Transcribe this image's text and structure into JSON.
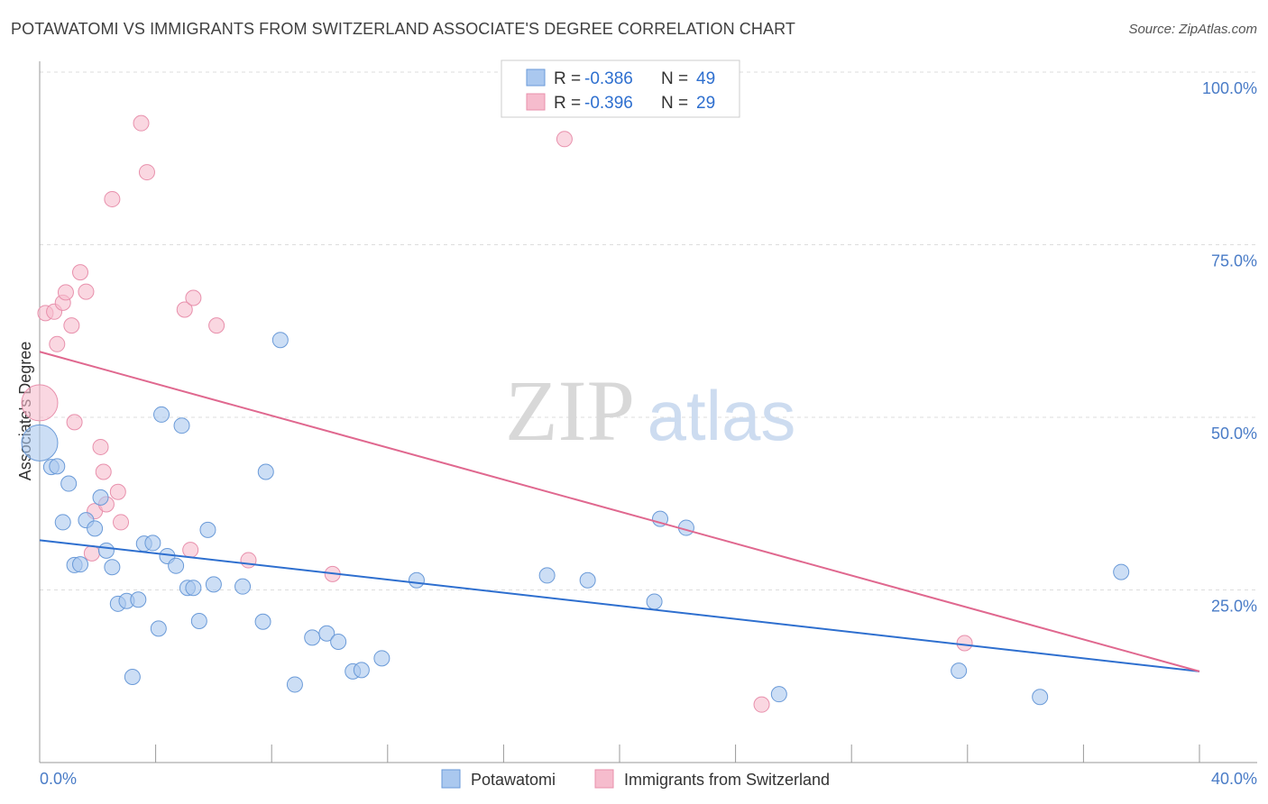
{
  "title": "POTAWATOMI VS IMMIGRANTS FROM SWITZERLAND ASSOCIATE'S DEGREE CORRELATION CHART",
  "source": "Source: ZipAtlas.com",
  "watermark": {
    "zip": "ZIP",
    "atlas": "atlas"
  },
  "colors": {
    "blue_fill": "#aac8ef",
    "blue_stroke": "#6a9ad8",
    "blue_line": "#2e6fcf",
    "pink_fill": "#f6bccd",
    "pink_stroke": "#e890ac",
    "pink_line": "#e0688f",
    "tick_text": "#4a7cc7",
    "grid": "#dddddd"
  },
  "legend": {
    "entries": [
      {
        "r_label": "R = ",
        "r_value": "-0.386",
        "n_label": "N = ",
        "n_value": "49",
        "series": "blue"
      },
      {
        "r_label": "R = ",
        "r_value": "-0.396",
        "n_label": "N = ",
        "n_value": "29",
        "series": "pink"
      }
    ]
  },
  "chart_data": {
    "type": "scatter",
    "title": "POTAWATOMI VS IMMIGRANTS FROM SWITZERLAND ASSOCIATE'S DEGREE CORRELATION CHART",
    "xlabel": "",
    "ylabel": "Associate's Degree",
    "xlim": [
      0,
      40
    ],
    "ylim": [
      0,
      100
    ],
    "x_tick_labels": [
      {
        "value": 0,
        "label": "0.0%"
      },
      {
        "value": 40,
        "label": "40.0%"
      }
    ],
    "y_tick_labels": [
      {
        "value": 25,
        "label": "25.0%"
      },
      {
        "value": 50,
        "label": "50.0%"
      },
      {
        "value": 75,
        "label": "75.0%"
      },
      {
        "value": 100,
        "label": "100.0%"
      }
    ],
    "x_minor_ticks": [
      4,
      8,
      12,
      16,
      20,
      24,
      28,
      32,
      36,
      40
    ],
    "grid": true,
    "legend_position": "top-center",
    "series": [
      {
        "name": "Potawatomi",
        "color": "blue",
        "R": -0.386,
        "N": 49,
        "trend": {
          "x0": 0,
          "y0": 32.2,
          "x1": 40,
          "y1": 13.2
        },
        "points": [
          {
            "x": 0.0,
            "y": 46.3,
            "size": "large"
          },
          {
            "x": 0.4,
            "y": 42.8
          },
          {
            "x": 0.6,
            "y": 42.9
          },
          {
            "x": 0.8,
            "y": 34.8
          },
          {
            "x": 1.0,
            "y": 40.4
          },
          {
            "x": 1.2,
            "y": 28.6
          },
          {
            "x": 1.4,
            "y": 28.7
          },
          {
            "x": 1.6,
            "y": 35.1
          },
          {
            "x": 1.9,
            "y": 33.9
          },
          {
            "x": 2.1,
            "y": 38.4
          },
          {
            "x": 2.3,
            "y": 30.7
          },
          {
            "x": 2.5,
            "y": 28.3
          },
          {
            "x": 2.7,
            "y": 23.0
          },
          {
            "x": 3.0,
            "y": 23.4
          },
          {
            "x": 3.2,
            "y": 12.4
          },
          {
            "x": 3.4,
            "y": 23.6
          },
          {
            "x": 3.6,
            "y": 31.7
          },
          {
            "x": 3.9,
            "y": 31.8
          },
          {
            "x": 4.1,
            "y": 19.4
          },
          {
            "x": 4.2,
            "y": 50.4
          },
          {
            "x": 4.4,
            "y": 29.9
          },
          {
            "x": 4.7,
            "y": 28.5
          },
          {
            "x": 4.9,
            "y": 48.8
          },
          {
            "x": 5.1,
            "y": 25.3
          },
          {
            "x": 5.3,
            "y": 25.3
          },
          {
            "x": 5.5,
            "y": 20.5
          },
          {
            "x": 5.8,
            "y": 33.7
          },
          {
            "x": 6.0,
            "y": 25.8
          },
          {
            "x": 7.0,
            "y": 25.5
          },
          {
            "x": 7.7,
            "y": 20.4
          },
          {
            "x": 7.8,
            "y": 42.1
          },
          {
            "x": 8.3,
            "y": 61.2
          },
          {
            "x": 8.8,
            "y": 11.3
          },
          {
            "x": 9.4,
            "y": 18.1
          },
          {
            "x": 9.9,
            "y": 18.7
          },
          {
            "x": 10.3,
            "y": 17.5
          },
          {
            "x": 10.8,
            "y": 13.2
          },
          {
            "x": 11.1,
            "y": 13.4
          },
          {
            "x": 11.8,
            "y": 15.1
          },
          {
            "x": 13.0,
            "y": 26.4
          },
          {
            "x": 17.5,
            "y": 27.1
          },
          {
            "x": 18.9,
            "y": 26.4
          },
          {
            "x": 21.2,
            "y": 23.3
          },
          {
            "x": 21.4,
            "y": 35.3
          },
          {
            "x": 22.3,
            "y": 34.0
          },
          {
            "x": 25.5,
            "y": 9.9
          },
          {
            "x": 31.7,
            "y": 13.3
          },
          {
            "x": 34.5,
            "y": 9.5
          },
          {
            "x": 37.3,
            "y": 27.6
          }
        ]
      },
      {
        "name": "Immigrants from Switzerland",
        "color": "pink",
        "R": -0.396,
        "N": 29,
        "trend": {
          "x0": 0,
          "y0": 59.5,
          "x1": 40,
          "y1": 13.2
        },
        "points": [
          {
            "x": 0.0,
            "y": 52.1,
            "size": "large"
          },
          {
            "x": 0.2,
            "y": 65.1
          },
          {
            "x": 0.5,
            "y": 65.3
          },
          {
            "x": 0.6,
            "y": 60.6
          },
          {
            "x": 0.8,
            "y": 66.6
          },
          {
            "x": 0.9,
            "y": 68.1
          },
          {
            "x": 1.1,
            "y": 63.3
          },
          {
            "x": 1.2,
            "y": 49.3
          },
          {
            "x": 1.4,
            "y": 71.0
          },
          {
            "x": 1.6,
            "y": 68.2
          },
          {
            "x": 1.8,
            "y": 30.3
          },
          {
            "x": 1.9,
            "y": 36.4
          },
          {
            "x": 2.1,
            "y": 45.7
          },
          {
            "x": 2.2,
            "y": 42.1
          },
          {
            "x": 2.3,
            "y": 37.4
          },
          {
            "x": 2.5,
            "y": 81.6
          },
          {
            "x": 2.7,
            "y": 39.2
          },
          {
            "x": 2.8,
            "y": 34.8
          },
          {
            "x": 3.5,
            "y": 92.6
          },
          {
            "x": 3.7,
            "y": 85.5
          },
          {
            "x": 5.0,
            "y": 65.6
          },
          {
            "x": 5.2,
            "y": 30.8
          },
          {
            "x": 5.3,
            "y": 67.3
          },
          {
            "x": 6.1,
            "y": 63.3
          },
          {
            "x": 7.2,
            "y": 29.3
          },
          {
            "x": 10.1,
            "y": 27.3
          },
          {
            "x": 18.1,
            "y": 90.3
          },
          {
            "x": 24.9,
            "y": 8.4
          },
          {
            "x": 31.9,
            "y": 17.3
          }
        ]
      }
    ]
  },
  "bottom_legend": {
    "items": [
      {
        "label": "Potawatomi",
        "series": "blue"
      },
      {
        "label": "Immigrants from Switzerland",
        "series": "pink"
      }
    ]
  }
}
